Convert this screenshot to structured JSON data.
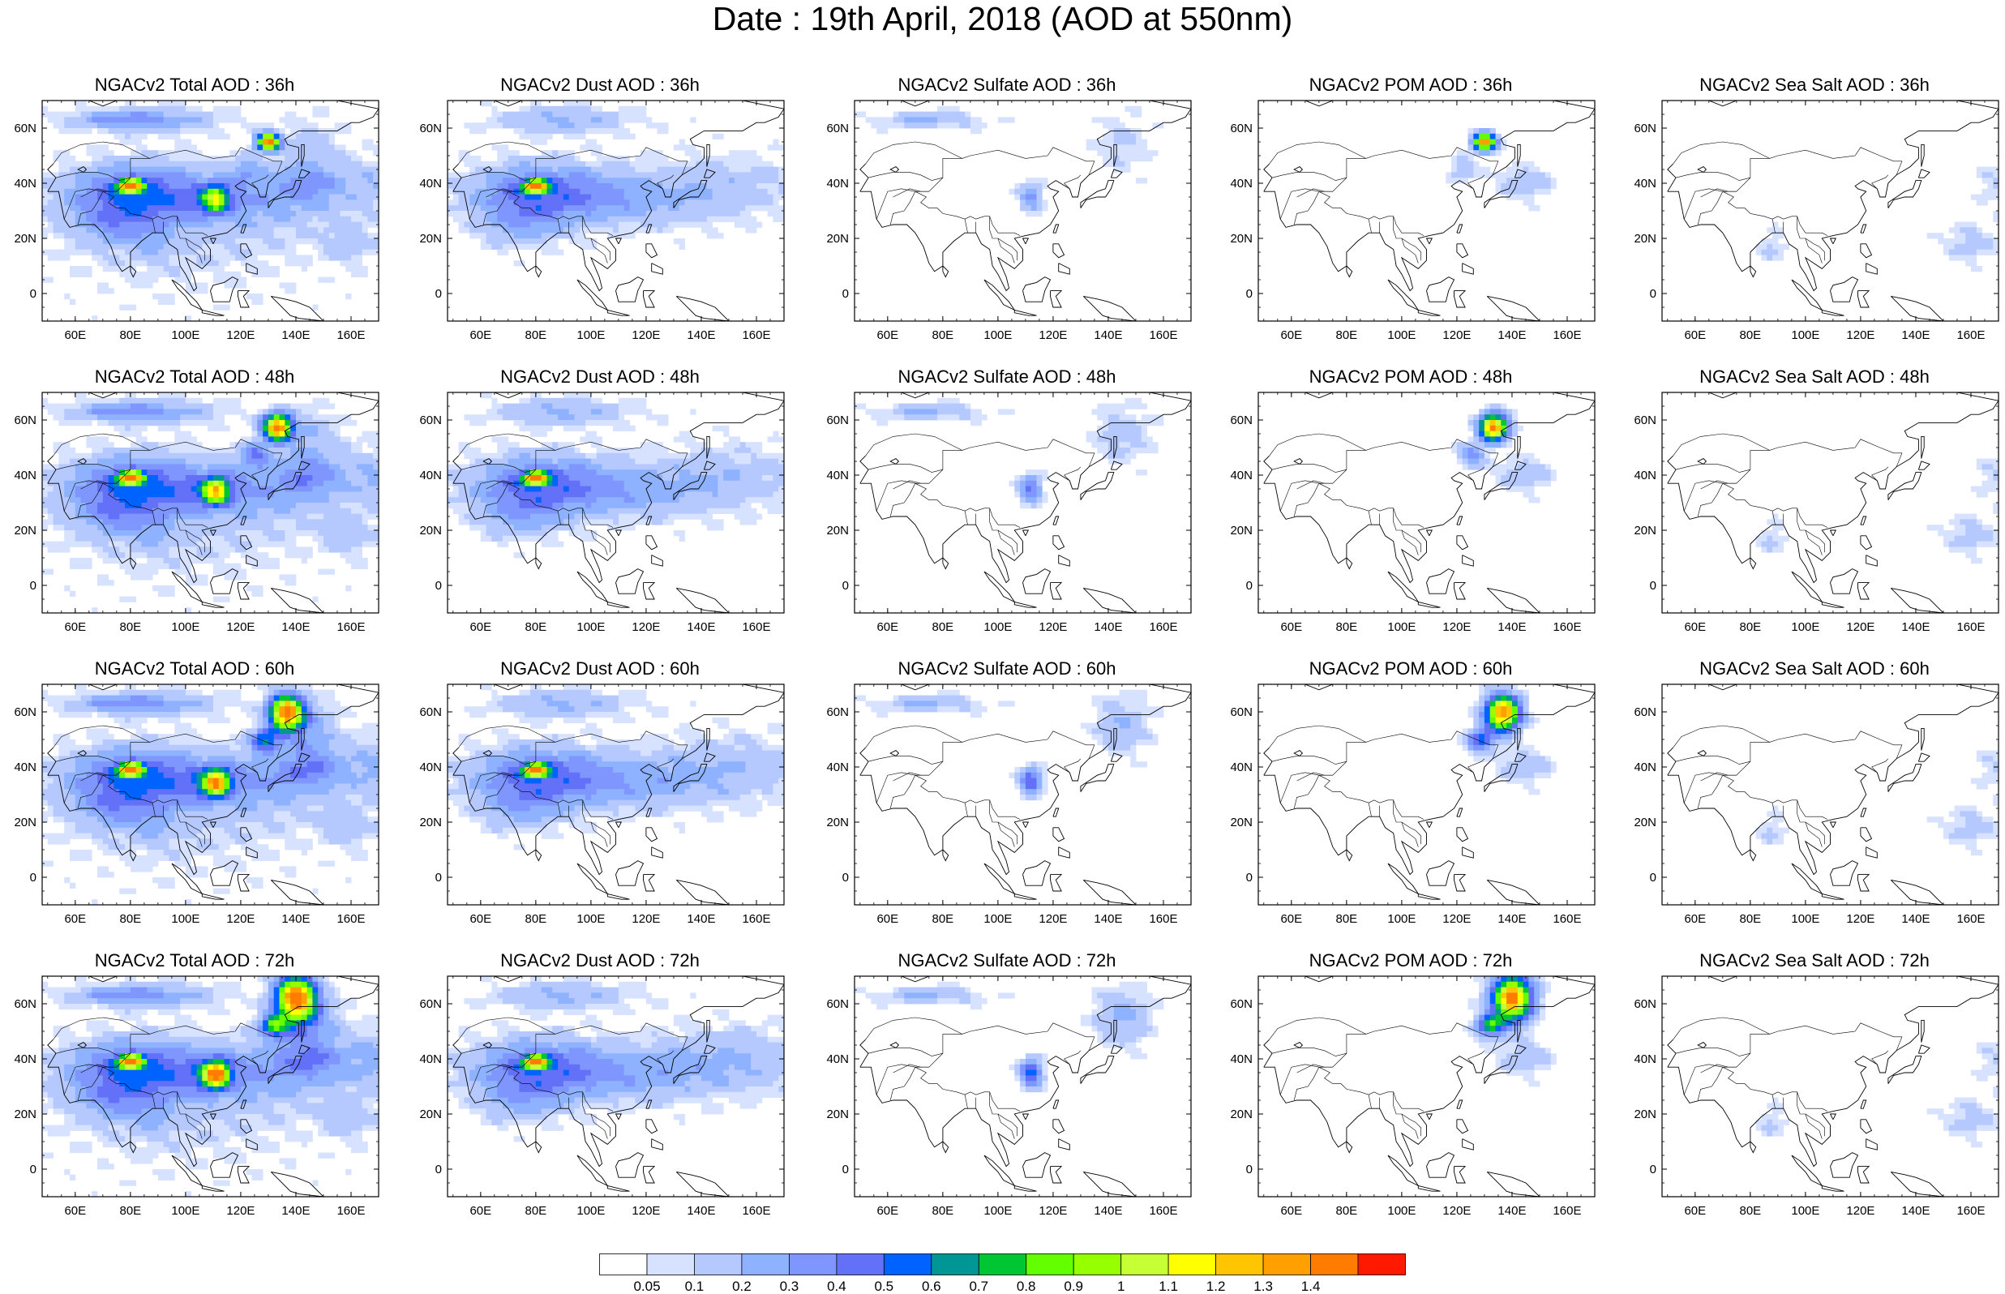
{
  "title": "Date : 19th April, 2018 (AOD at 550nm)",
  "lon_ticks": [
    "60E",
    "80E",
    "100E",
    "120E",
    "140E",
    "160E"
  ],
  "lat_ticks": [
    "60N",
    "40N",
    "20N",
    "0"
  ],
  "panels": [
    {
      "title": "NGACv2 Total AOD : 36h",
      "variable": "total",
      "lead": 36
    },
    {
      "title": "NGACv2 Dust AOD : 36h",
      "variable": "dust",
      "lead": 36
    },
    {
      "title": "NGACv2 Sulfate AOD : 36h",
      "variable": "sulfate",
      "lead": 36
    },
    {
      "title": "NGACv2 POM AOD : 36h",
      "variable": "pom",
      "lead": 36
    },
    {
      "title": "NGACv2 Sea Salt AOD : 36h",
      "variable": "seasalt",
      "lead": 36
    },
    {
      "title": "NGACv2 Total AOD : 48h",
      "variable": "total",
      "lead": 48
    },
    {
      "title": "NGACv2 Dust AOD : 48h",
      "variable": "dust",
      "lead": 48
    },
    {
      "title": "NGACv2 Sulfate AOD : 48h",
      "variable": "sulfate",
      "lead": 48
    },
    {
      "title": "NGACv2 POM AOD : 48h",
      "variable": "pom",
      "lead": 48
    },
    {
      "title": "NGACv2 Sea Salt AOD : 48h",
      "variable": "seasalt",
      "lead": 48
    },
    {
      "title": "NGACv2 Total AOD : 60h",
      "variable": "total",
      "lead": 60
    },
    {
      "title": "NGACv2 Dust AOD : 60h",
      "variable": "dust",
      "lead": 60
    },
    {
      "title": "NGACv2 Sulfate AOD : 60h",
      "variable": "sulfate",
      "lead": 60
    },
    {
      "title": "NGACv2 POM AOD : 60h",
      "variable": "pom",
      "lead": 60
    },
    {
      "title": "NGACv2 Sea Salt AOD : 60h",
      "variable": "seasalt",
      "lead": 60
    },
    {
      "title": "NGACv2 Total AOD : 72h",
      "variable": "total",
      "lead": 72
    },
    {
      "title": "NGACv2 Dust AOD : 72h",
      "variable": "dust",
      "lead": 72
    },
    {
      "title": "NGACv2 Sulfate AOD : 72h",
      "variable": "sulfate",
      "lead": 72
    },
    {
      "title": "NGACv2 POM AOD : 72h",
      "variable": "pom",
      "lead": 72
    },
    {
      "title": "NGACv2 Sea Salt  AOD : 72h",
      "variable": "seasalt",
      "lead": 72
    }
  ],
  "colorbar": {
    "labels": [
      "0.05",
      "0.1",
      "0.2",
      "0.3",
      "0.4",
      "0.5",
      "0.6",
      "0.7",
      "0.8",
      "0.9",
      "1",
      "1.1",
      "1.2",
      "1.3",
      "1.4"
    ],
    "colors": [
      "#ffffff",
      "#d6e2ff",
      "#b5c9ff",
      "#8eb2ff",
      "#7f96ff",
      "#6370f8",
      "#0063ff",
      "#009696",
      "#00c633",
      "#63ff00",
      "#96ff00",
      "#c6ff33",
      "#ffff00",
      "#ffc600",
      "#ffa000",
      "#ff7c00",
      "#ff1900"
    ]
  }
}
